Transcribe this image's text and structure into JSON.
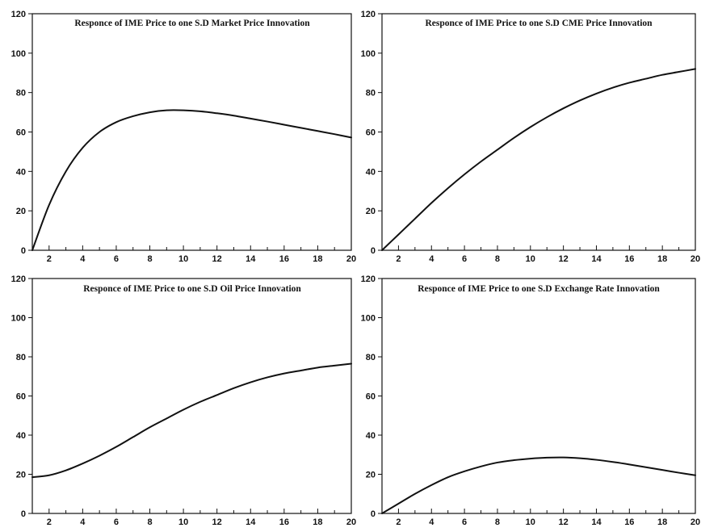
{
  "chart_data": [
    {
      "type": "line",
      "title": "Responce of IME Price to one S.D Market Price Innovation",
      "xlim": [
        1,
        20
      ],
      "ylim": [
        0,
        120
      ],
      "x_ticks": [
        2,
        4,
        6,
        8,
        10,
        12,
        14,
        16,
        18,
        20
      ],
      "y_ticks": [
        0,
        20,
        40,
        60,
        80,
        100,
        120
      ],
      "grid": false,
      "series": [
        {
          "x": [
            1,
            2,
            3,
            4,
            5,
            6,
            7,
            8,
            9,
            10,
            11,
            12,
            13,
            14,
            15,
            16,
            17,
            18,
            19,
            20
          ],
          "values": [
            0,
            23,
            40,
            52,
            60,
            65,
            68,
            70,
            71,
            71,
            70.5,
            69.5,
            68.3,
            66.8,
            65.3,
            63.7,
            62.1,
            60.5,
            58.9,
            57.2
          ]
        }
      ]
    },
    {
      "type": "line",
      "title": "Responce of IME Price to one S.D CME Price Innovation",
      "xlim": [
        1,
        20
      ],
      "ylim": [
        0,
        120
      ],
      "x_ticks": [
        2,
        4,
        6,
        8,
        10,
        12,
        14,
        16,
        18,
        20
      ],
      "y_ticks": [
        0,
        20,
        40,
        60,
        80,
        100,
        120
      ],
      "grid": false,
      "series": [
        {
          "x": [
            1,
            2,
            3,
            4,
            5,
            6,
            7,
            8,
            9,
            10,
            11,
            12,
            13,
            14,
            15,
            16,
            17,
            18,
            19,
            20
          ],
          "values": [
            0,
            8,
            16,
            24,
            31.5,
            38.5,
            45,
            51,
            57,
            62.5,
            67.5,
            72,
            76,
            79.5,
            82.5,
            85,
            87,
            89,
            90.5,
            92
          ]
        }
      ]
    },
    {
      "type": "line",
      "title": "Responce of IME Price to one S.D Oil Price Innovation",
      "xlim": [
        1,
        20
      ],
      "ylim": [
        0,
        120
      ],
      "x_ticks": [
        2,
        4,
        6,
        8,
        10,
        12,
        14,
        16,
        18,
        20
      ],
      "y_ticks": [
        0,
        20,
        40,
        60,
        80,
        100,
        120
      ],
      "grid": false,
      "series": [
        {
          "x": [
            1,
            2,
            3,
            4,
            5,
            6,
            7,
            8,
            9,
            10,
            11,
            12,
            13,
            14,
            15,
            16,
            17,
            18,
            19,
            20
          ],
          "values": [
            18.5,
            19.5,
            22,
            25.5,
            29.5,
            34,
            39,
            44,
            48.5,
            53,
            57,
            60.5,
            64,
            67,
            69.5,
            71.5,
            73,
            74.5,
            75.5,
            76.5
          ]
        }
      ]
    },
    {
      "type": "line",
      "title": "Responce of IME Price to one S.D Exchange Rate Innovation",
      "xlim": [
        1,
        20
      ],
      "ylim": [
        0,
        120
      ],
      "x_ticks": [
        2,
        4,
        6,
        8,
        10,
        12,
        14,
        16,
        18,
        20
      ],
      "y_ticks": [
        0,
        20,
        40,
        60,
        80,
        100,
        120
      ],
      "grid": false,
      "series": [
        {
          "x": [
            1,
            2,
            3,
            4,
            5,
            6,
            7,
            8,
            9,
            10,
            11,
            12,
            13,
            14,
            15,
            16,
            17,
            18,
            19,
            20
          ],
          "values": [
            0,
            5,
            10,
            14.5,
            18.5,
            21.5,
            24,
            26,
            27.2,
            28,
            28.5,
            28.6,
            28.2,
            27.4,
            26.3,
            25,
            23.6,
            22.2,
            20.8,
            19.5
          ]
        }
      ]
    }
  ]
}
